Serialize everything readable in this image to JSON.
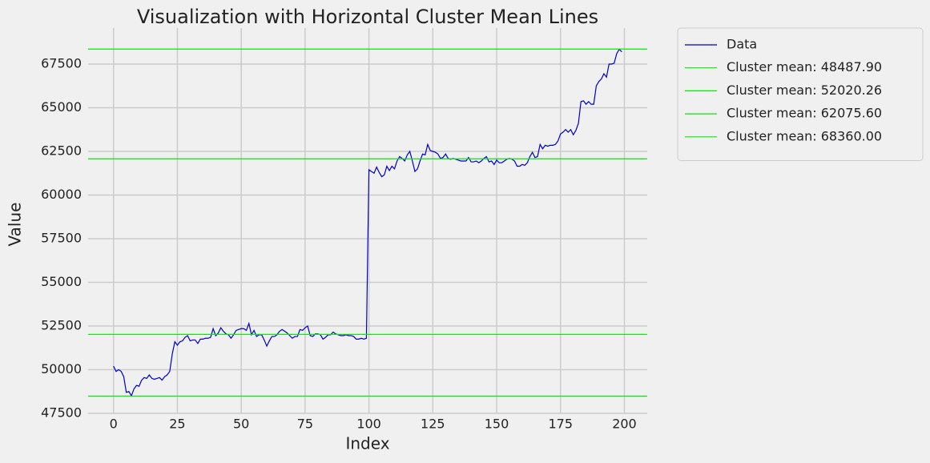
{
  "chart_data": {
    "type": "line",
    "title": "Visualization with Horizontal Cluster Mean Lines",
    "xlabel": "Index",
    "ylabel": "Value",
    "x": [
      0,
      1,
      2,
      3,
      4,
      5,
      6,
      7,
      8,
      9,
      10,
      11,
      12,
      13,
      14,
      15,
      16,
      17,
      18,
      19,
      20,
      21,
      22,
      23,
      24,
      25,
      26,
      27,
      28,
      29,
      30,
      31,
      32,
      33,
      34,
      35,
      36,
      37,
      38,
      39,
      40,
      41,
      42,
      43,
      44,
      45,
      46,
      47,
      48,
      49,
      50,
      51,
      52,
      53,
      54,
      55,
      56,
      57,
      58,
      59,
      60,
      61,
      62,
      63,
      64,
      65,
      66,
      67,
      68,
      69,
      70,
      71,
      72,
      73,
      74,
      75,
      76,
      77,
      78,
      79,
      80,
      81,
      82,
      83,
      84,
      85,
      86,
      87,
      88,
      89,
      90,
      91,
      92,
      93,
      94,
      95,
      96,
      97,
      98,
      99,
      100,
      101,
      102,
      103,
      104,
      105,
      106,
      107,
      108,
      109,
      110,
      111,
      112,
      113,
      114,
      115,
      116,
      117,
      118,
      119,
      120,
      121,
      122,
      123,
      124,
      125,
      126,
      127,
      128,
      129,
      130,
      131,
      132,
      133,
      134,
      135,
      136,
      137,
      138,
      139,
      140,
      141,
      142,
      143,
      144,
      145,
      146,
      147,
      148,
      149,
      150,
      151,
      152,
      153,
      154,
      155,
      156,
      157,
      158,
      159,
      160,
      161,
      162,
      163,
      164,
      165,
      166,
      167,
      168,
      169,
      170,
      171,
      172,
      173,
      174,
      175,
      176,
      177,
      178,
      179,
      180,
      181,
      182,
      183,
      184,
      185,
      186,
      187,
      188,
      189,
      190,
      191,
      192,
      193,
      194,
      195,
      196,
      197,
      198,
      199
    ],
    "series": [
      {
        "name": "Data",
        "color": "#0000cc",
        "values": [
          50200,
          49900,
          50000,
          49900,
          49600,
          48700,
          48750,
          48500,
          48900,
          49100,
          49050,
          49400,
          49550,
          49500,
          49700,
          49500,
          49450,
          49500,
          49550,
          49400,
          49600,
          49700,
          49900,
          50900,
          51600,
          51400,
          51600,
          51650,
          51850,
          51950,
          51650,
          51700,
          51700,
          51500,
          51750,
          51750,
          51800,
          51800,
          51850,
          52350,
          51950,
          52100,
          52400,
          52200,
          52050,
          52000,
          51800,
          52000,
          52250,
          52300,
          52350,
          52350,
          52250,
          52650,
          52000,
          52250,
          51900,
          52000,
          52000,
          51700,
          51350,
          51650,
          51900,
          51900,
          52000,
          52200,
          52300,
          52200,
          52100,
          51950,
          51800,
          51900,
          51900,
          52300,
          52250,
          52400,
          52500,
          51950,
          51900,
          52050,
          52050,
          52000,
          51750,
          51850,
          52000,
          52000,
          52150,
          52050,
          52000,
          51950,
          51950,
          52000,
          51950,
          51950,
          51900,
          51750,
          51750,
          51800,
          51750,
          51800,
          61450,
          61350,
          61250,
          61600,
          61300,
          61050,
          61150,
          61650,
          61400,
          61650,
          61500,
          61950,
          62200,
          62100,
          61950,
          62300,
          62500,
          61950,
          61350,
          61500,
          61950,
          62350,
          62300,
          62900,
          62550,
          62500,
          62450,
          62350,
          62100,
          62150,
          62350,
          62100,
          62050,
          62100,
          62050,
          62000,
          61950,
          61950,
          61950,
          62150,
          61900,
          61900,
          61950,
          61850,
          61950,
          62100,
          62200,
          61900,
          61950,
          61750,
          62000,
          61850,
          61850,
          61950,
          62050,
          62100,
          62050,
          61950,
          61650,
          61650,
          61750,
          61700,
          61850,
          62200,
          62450,
          62150,
          62200,
          62900,
          62650,
          62850,
          62800,
          62850,
          62850,
          62900,
          63100,
          63500,
          63600,
          63750,
          63600,
          63750,
          63450,
          63700,
          64100,
          65350,
          65400,
          65200,
          65350,
          65200,
          65200,
          66250,
          66500,
          66650,
          66950,
          66750,
          67500,
          67500,
          67550,
          68100,
          68350,
          68200
        ]
      }
    ],
    "hlines": [
      {
        "name": "Cluster mean: 48487.90",
        "value": 48487.9,
        "color": "#00ee00"
      },
      {
        "name": "Cluster mean: 52020.26",
        "value": 52020.26,
        "color": "#00ee00"
      },
      {
        "name": "Cluster mean: 62075.60",
        "value": 62075.6,
        "color": "#00ee00"
      },
      {
        "name": "Cluster mean: 68360.00",
        "value": 68360,
        "color": "#00ee00"
      }
    ],
    "xlim": [
      -9.95,
      208.95
    ],
    "ylim": [
      47500,
      69564
    ],
    "xticks": [
      0,
      25,
      50,
      75,
      100,
      125,
      150,
      175,
      200
    ],
    "yticks": [
      47500,
      50000,
      52500,
      55000,
      57500,
      60000,
      62500,
      65000,
      67500
    ],
    "grid": true,
    "legend": "outside right"
  }
}
